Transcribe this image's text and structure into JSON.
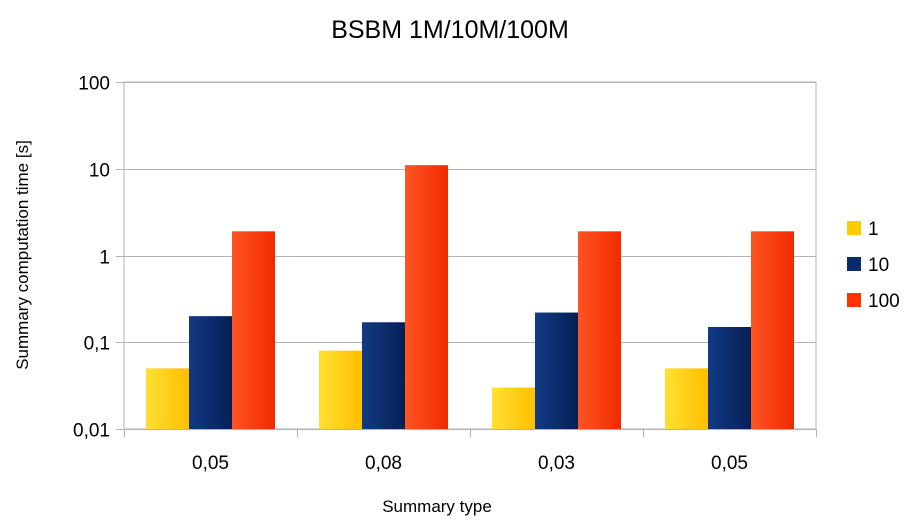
{
  "chart_data": {
    "type": "bar",
    "title": "BSBM 1M/10M/100M",
    "xlabel": "Summary type",
    "ylabel": "Summary computation time [s]",
    "yscale": "log",
    "ylim": [
      0.01,
      100
    ],
    "yticks": [
      0.01,
      0.1,
      1,
      10,
      100
    ],
    "ytick_labels": [
      "0,01",
      "0,1",
      "1",
      "10",
      "100"
    ],
    "categories": [
      "0,05",
      "0,08",
      "0,03",
      "0,05"
    ],
    "series": [
      {
        "name": "1",
        "color": "#ffcc00",
        "values": [
          0.05,
          0.08,
          0.03,
          0.05
        ]
      },
      {
        "name": "10",
        "color": "#0a2b6b",
        "values": [
          0.2,
          0.17,
          0.22,
          0.15
        ]
      },
      {
        "name": "100",
        "color": "#ff3300",
        "values": [
          1.9,
          11.0,
          1.9,
          1.9
        ]
      }
    ],
    "grid": true,
    "legend": "right"
  }
}
